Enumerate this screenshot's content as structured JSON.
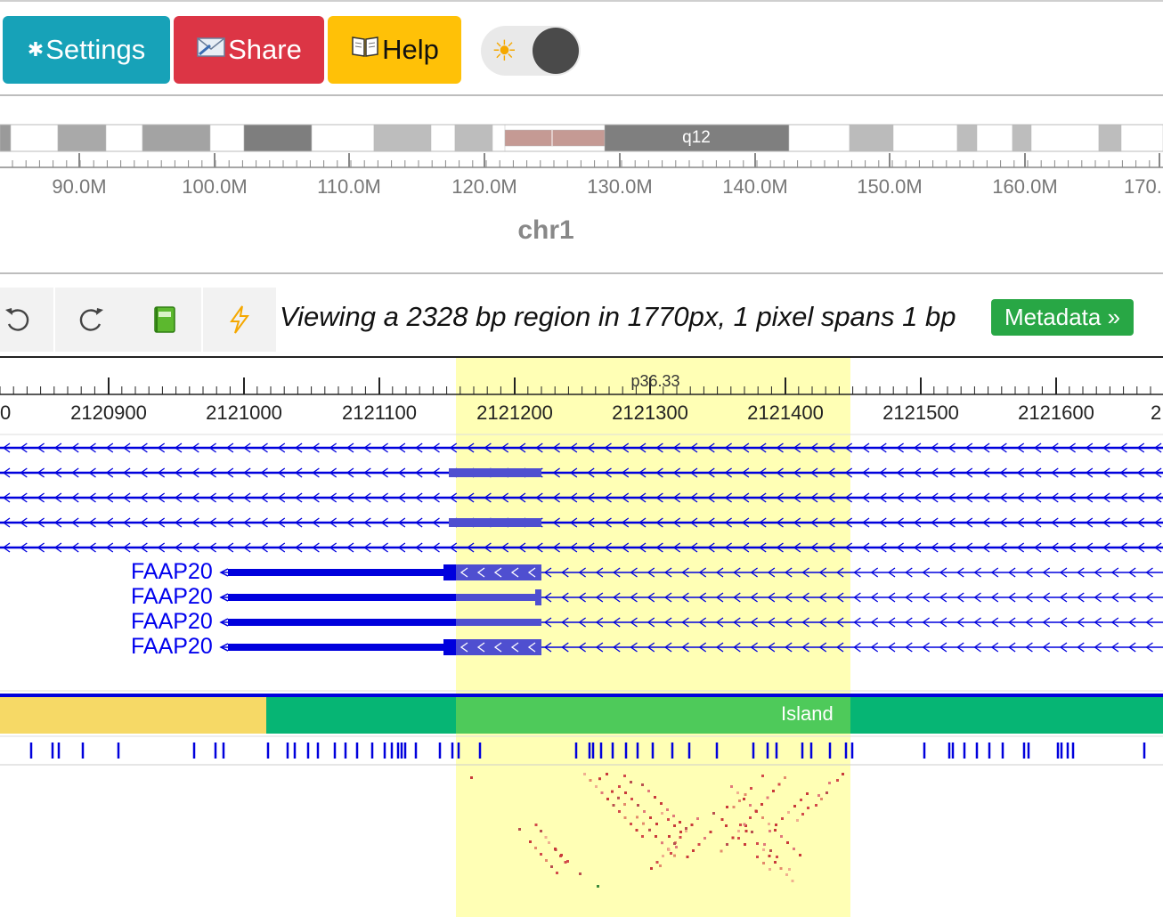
{
  "toolbar": {
    "settings_label": "Settings",
    "settings_icon": "gear-icon",
    "share_label": "Share",
    "share_icon": "envelope-icon",
    "help_label": "Help",
    "help_icon": "book-icon",
    "theme_toggle_icon": "sun-icon",
    "colors": {
      "settings": "#17a2b8",
      "share": "#dc3545",
      "help": "#ffc107"
    }
  },
  "ideogram": {
    "chromosome": "chr1",
    "band_label": "q12",
    "tick_labels": [
      "90.0M",
      "100.0M",
      "110.0M",
      "120.0M",
      "130.0M",
      "140.0M",
      "150.0M",
      "160.0M",
      "170."
    ]
  },
  "nav": {
    "undo_icon": "undo-icon",
    "redo_icon": "redo-icon",
    "book_icon": "green-book-icon",
    "bolt_icon": "lightning-icon",
    "viewing_text": "Viewing a 2328 bp region in 1770px, 1 pixel spans 1 bp",
    "metadata_label": "Metadata »"
  },
  "track_ruler": {
    "band_label": "p36.33",
    "tick_labels": [
      "0",
      "2120900",
      "2121000",
      "2121100",
      "2121200",
      "2121300",
      "2121400",
      "2121500",
      "2121600",
      "2"
    ]
  },
  "genes": {
    "labels": [
      "FAAP20",
      "FAAP20",
      "FAAP20",
      "FAAP20"
    ]
  },
  "cpg": {
    "island_label": "Island"
  }
}
